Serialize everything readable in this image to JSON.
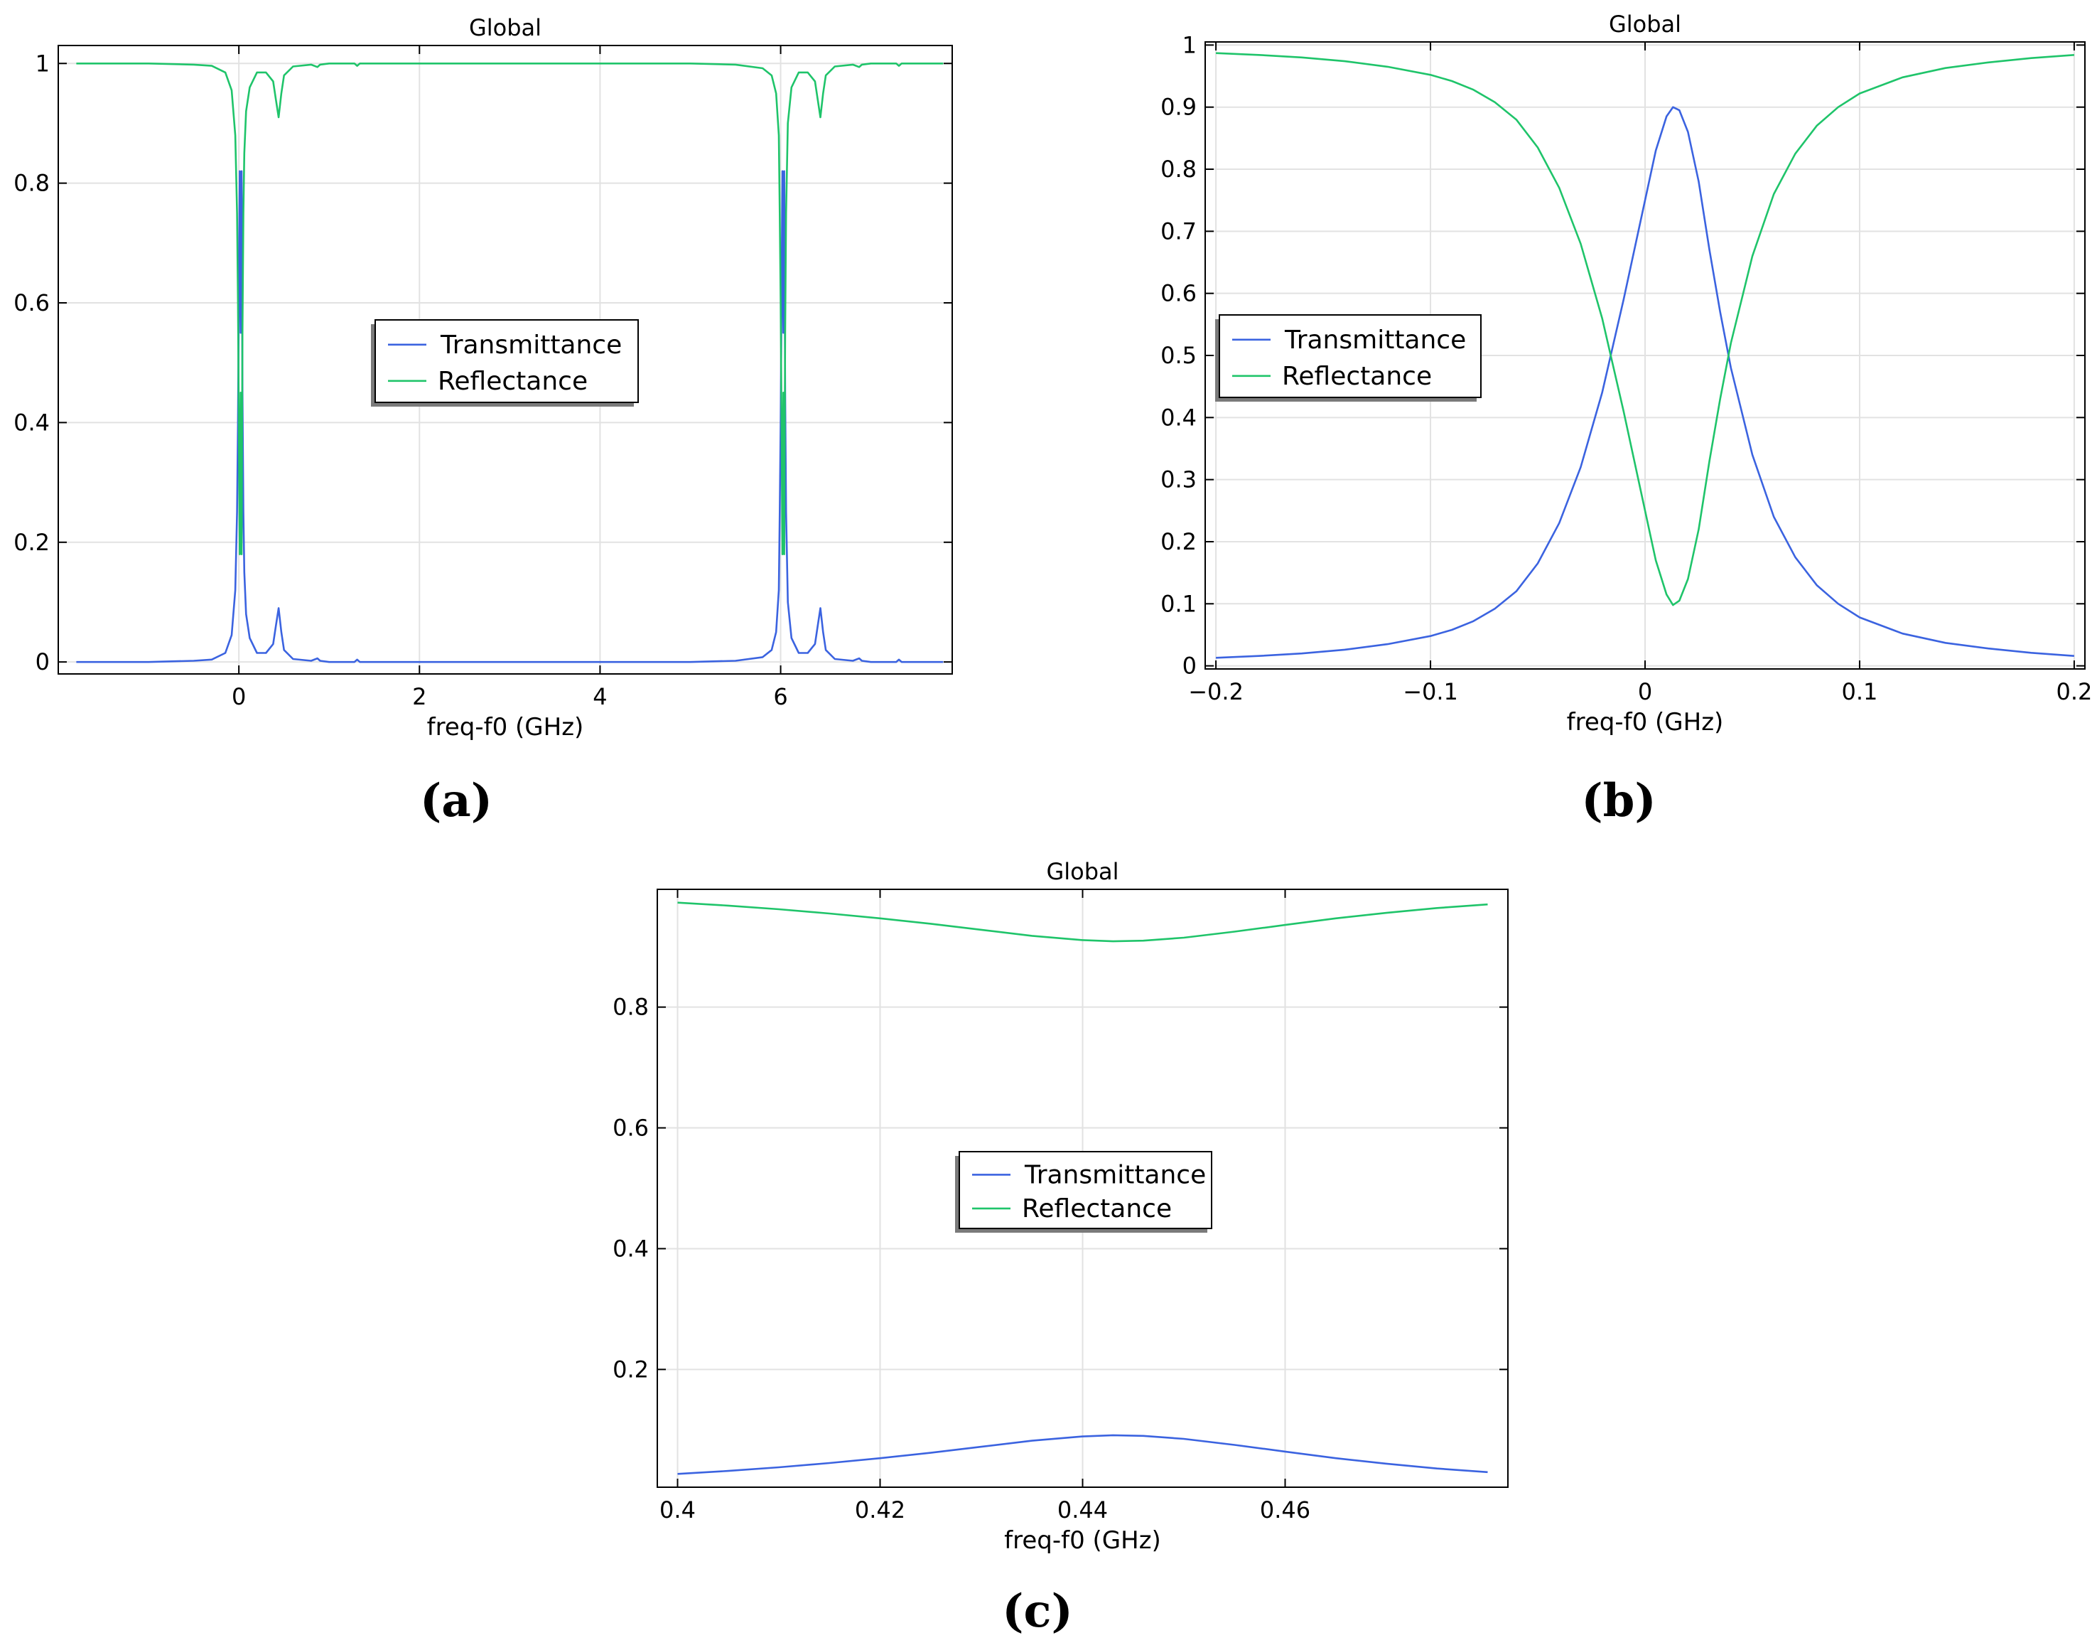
{
  "figure": {
    "labels": [
      "(a)",
      "(b)",
      "(c)"
    ]
  },
  "chart_data": [
    {
      "id": "a",
      "type": "line",
      "title": "Global",
      "xlabel": "freq-f0 (GHz)",
      "ylabel": "",
      "xlim": [
        -2,
        7.9
      ],
      "ylim": [
        -0.02,
        1.03
      ],
      "xticks": [
        0,
        2,
        4,
        6
      ],
      "xtick_labels": [
        "0",
        "2",
        "4",
        "6"
      ],
      "yticks": [
        0,
        0.2,
        0.4,
        0.6,
        0.8,
        1
      ],
      "ytick_labels": [
        "0",
        "0.2",
        "0.4",
        "0.6",
        "0.8",
        "1"
      ],
      "legend": {
        "position": "center-left",
        "entries": [
          "Transmittance",
          "Reflectance"
        ]
      },
      "series": [
        {
          "name": "Transmittance",
          "color": "#3b63e0",
          "x": [
            -1.8,
            -1.0,
            -0.5,
            -0.3,
            -0.15,
            -0.08,
            -0.04,
            -0.02,
            -0.01,
            0.0,
            0.01,
            0.02,
            0.03,
            0.04,
            0.05,
            0.06,
            0.08,
            0.12,
            0.2,
            0.3,
            0.38,
            0.41,
            0.44,
            0.47,
            0.5,
            0.6,
            0.8,
            0.87,
            0.9,
            1.0,
            1.28,
            1.31,
            1.34,
            1.6,
            2.0,
            3.0,
            4.0,
            5.0,
            5.5,
            5.8,
            5.9,
            5.95,
            5.98,
            5.99,
            6.0,
            6.01,
            6.02,
            6.03,
            6.04,
            6.05,
            6.06,
            6.08,
            6.12,
            6.2,
            6.3,
            6.38,
            6.41,
            6.44,
            6.47,
            6.5,
            6.6,
            6.8,
            6.87,
            6.9,
            7.0,
            7.28,
            7.31,
            7.34,
            7.8
          ],
          "y": [
            0.0,
            0.0,
            0.002,
            0.004,
            0.015,
            0.045,
            0.12,
            0.25,
            0.4,
            0.6,
            0.82,
            0.55,
            0.82,
            0.45,
            0.25,
            0.15,
            0.08,
            0.04,
            0.015,
            0.015,
            0.03,
            0.06,
            0.09,
            0.05,
            0.02,
            0.005,
            0.002,
            0.006,
            0.002,
            0.0,
            0.0,
            0.004,
            0.0,
            0.0,
            0.0,
            0.0,
            0.0,
            0.0,
            0.002,
            0.008,
            0.02,
            0.05,
            0.12,
            0.25,
            0.4,
            0.6,
            0.82,
            0.55,
            0.82,
            0.45,
            0.25,
            0.1,
            0.04,
            0.015,
            0.015,
            0.03,
            0.06,
            0.09,
            0.05,
            0.02,
            0.005,
            0.002,
            0.006,
            0.002,
            0.0,
            0.0,
            0.004,
            0.0,
            0.0
          ]
        },
        {
          "name": "Reflectance",
          "color": "#1fc46a",
          "x": [
            -1.8,
            -1.0,
            -0.5,
            -0.3,
            -0.15,
            -0.08,
            -0.04,
            -0.02,
            -0.01,
            0.0,
            0.01,
            0.02,
            0.03,
            0.04,
            0.05,
            0.06,
            0.08,
            0.12,
            0.2,
            0.3,
            0.38,
            0.41,
            0.44,
            0.47,
            0.5,
            0.6,
            0.8,
            0.87,
            0.9,
            1.0,
            1.28,
            1.31,
            1.34,
            1.6,
            2.0,
            3.0,
            4.0,
            5.0,
            5.5,
            5.8,
            5.9,
            5.95,
            5.98,
            5.99,
            6.0,
            6.01,
            6.02,
            6.03,
            6.04,
            6.05,
            6.06,
            6.08,
            6.12,
            6.2,
            6.3,
            6.38,
            6.41,
            6.44,
            6.47,
            6.5,
            6.6,
            6.8,
            6.87,
            6.9,
            7.0,
            7.28,
            7.31,
            7.34,
            7.8
          ],
          "y": [
            1.0,
            1.0,
            0.998,
            0.996,
            0.985,
            0.955,
            0.88,
            0.75,
            0.6,
            0.4,
            0.18,
            0.45,
            0.18,
            0.55,
            0.75,
            0.85,
            0.92,
            0.96,
            0.985,
            0.985,
            0.97,
            0.94,
            0.91,
            0.95,
            0.98,
            0.995,
            0.998,
            0.994,
            0.998,
            1.0,
            1.0,
            0.996,
            1.0,
            1.0,
            1.0,
            1.0,
            1.0,
            1.0,
            0.998,
            0.992,
            0.98,
            0.95,
            0.88,
            0.75,
            0.6,
            0.4,
            0.18,
            0.45,
            0.18,
            0.55,
            0.75,
            0.9,
            0.96,
            0.985,
            0.985,
            0.97,
            0.94,
            0.91,
            0.95,
            0.98,
            0.995,
            0.998,
            0.994,
            0.998,
            1.0,
            1.0,
            0.996,
            1.0,
            1.0
          ]
        }
      ]
    },
    {
      "id": "b",
      "type": "line",
      "title": "Global",
      "xlabel": "freq-f0 (GHz)",
      "ylabel": "",
      "xlim": [
        -0.205,
        0.205
      ],
      "ylim": [
        -0.005,
        1.005
      ],
      "xticks": [
        -0.2,
        -0.1,
        0,
        0.1,
        0.2
      ],
      "xtick_labels": [
        "−0.2",
        "−0.1",
        "0",
        "0.1",
        "0.2"
      ],
      "yticks": [
        0,
        0.1,
        0.2,
        0.3,
        0.4,
        0.5,
        0.6,
        0.7,
        0.8,
        0.9,
        1
      ],
      "ytick_labels": [
        "0",
        "0.1",
        "0.2",
        "0.3",
        "0.4",
        "0.5",
        "0.6",
        "0.7",
        "0.8",
        "0.9",
        "1"
      ],
      "legend": {
        "position": "center-left",
        "entries": [
          "Transmittance",
          "Reflectance"
        ]
      },
      "series": [
        {
          "name": "Transmittance",
          "color": "#3b63e0",
          "x": [
            -0.2,
            -0.18,
            -0.16,
            -0.14,
            -0.12,
            -0.1,
            -0.09,
            -0.08,
            -0.07,
            -0.06,
            -0.05,
            -0.04,
            -0.03,
            -0.02,
            -0.01,
            0.0,
            0.005,
            0.01,
            0.013,
            0.016,
            0.02,
            0.025,
            0.03,
            0.035,
            0.04,
            0.05,
            0.06,
            0.07,
            0.08,
            0.09,
            0.1,
            0.12,
            0.14,
            0.16,
            0.18,
            0.2
          ],
          "y": [
            0.013,
            0.016,
            0.02,
            0.026,
            0.035,
            0.048,
            0.058,
            0.072,
            0.092,
            0.12,
            0.165,
            0.23,
            0.32,
            0.44,
            0.59,
            0.75,
            0.83,
            0.885,
            0.9,
            0.895,
            0.86,
            0.78,
            0.67,
            0.57,
            0.48,
            0.34,
            0.24,
            0.175,
            0.13,
            0.1,
            0.078,
            0.052,
            0.037,
            0.028,
            0.021,
            0.016
          ]
        },
        {
          "name": "Reflectance",
          "color": "#1fc46a",
          "x": [
            -0.2,
            -0.18,
            -0.16,
            -0.14,
            -0.12,
            -0.1,
            -0.09,
            -0.08,
            -0.07,
            -0.06,
            -0.05,
            -0.04,
            -0.03,
            -0.02,
            -0.01,
            0.0,
            0.005,
            0.01,
            0.013,
            0.016,
            0.02,
            0.025,
            0.03,
            0.035,
            0.04,
            0.05,
            0.06,
            0.07,
            0.08,
            0.09,
            0.1,
            0.12,
            0.14,
            0.16,
            0.18,
            0.2
          ],
          "y": [
            0.987,
            0.984,
            0.98,
            0.974,
            0.965,
            0.952,
            0.942,
            0.928,
            0.908,
            0.88,
            0.835,
            0.77,
            0.68,
            0.56,
            0.41,
            0.25,
            0.17,
            0.115,
            0.098,
            0.105,
            0.14,
            0.22,
            0.33,
            0.43,
            0.52,
            0.66,
            0.76,
            0.825,
            0.87,
            0.9,
            0.922,
            0.948,
            0.963,
            0.972,
            0.979,
            0.984
          ]
        }
      ]
    },
    {
      "id": "c",
      "type": "line",
      "title": "Global",
      "xlabel": "freq-f0 (GHz)",
      "ylabel": "",
      "xlim": [
        0.398,
        0.482
      ],
      "ylim": [
        0.005,
        0.995
      ],
      "xticks": [
        0.4,
        0.42,
        0.44,
        0.46
      ],
      "xtick_labels": [
        "0.4",
        "0.42",
        "0.44",
        "0.46"
      ],
      "yticks": [
        0.2,
        0.4,
        0.6,
        0.8
      ],
      "ytick_labels": [
        "0.2",
        "0.4",
        "0.6",
        "0.8"
      ],
      "legend": {
        "position": "center",
        "entries": [
          "Transmittance",
          "Reflectance"
        ]
      },
      "series": [
        {
          "name": "Transmittance",
          "color": "#3b63e0",
          "x": [
            0.4,
            0.405,
            0.41,
            0.415,
            0.42,
            0.425,
            0.43,
            0.435,
            0.44,
            0.443,
            0.446,
            0.45,
            0.455,
            0.46,
            0.465,
            0.47,
            0.475,
            0.48
          ],
          "y": [
            0.027,
            0.032,
            0.038,
            0.045,
            0.053,
            0.062,
            0.072,
            0.082,
            0.089,
            0.091,
            0.09,
            0.085,
            0.075,
            0.064,
            0.053,
            0.044,
            0.036,
            0.03
          ]
        },
        {
          "name": "Reflectance",
          "color": "#1fc46a",
          "x": [
            0.4,
            0.405,
            0.41,
            0.415,
            0.42,
            0.425,
            0.43,
            0.435,
            0.44,
            0.443,
            0.446,
            0.45,
            0.455,
            0.46,
            0.465,
            0.47,
            0.475,
            0.48
          ],
          "y": [
            0.973,
            0.968,
            0.962,
            0.955,
            0.947,
            0.938,
            0.928,
            0.918,
            0.911,
            0.909,
            0.91,
            0.915,
            0.925,
            0.936,
            0.947,
            0.956,
            0.964,
            0.97
          ]
        }
      ]
    }
  ]
}
